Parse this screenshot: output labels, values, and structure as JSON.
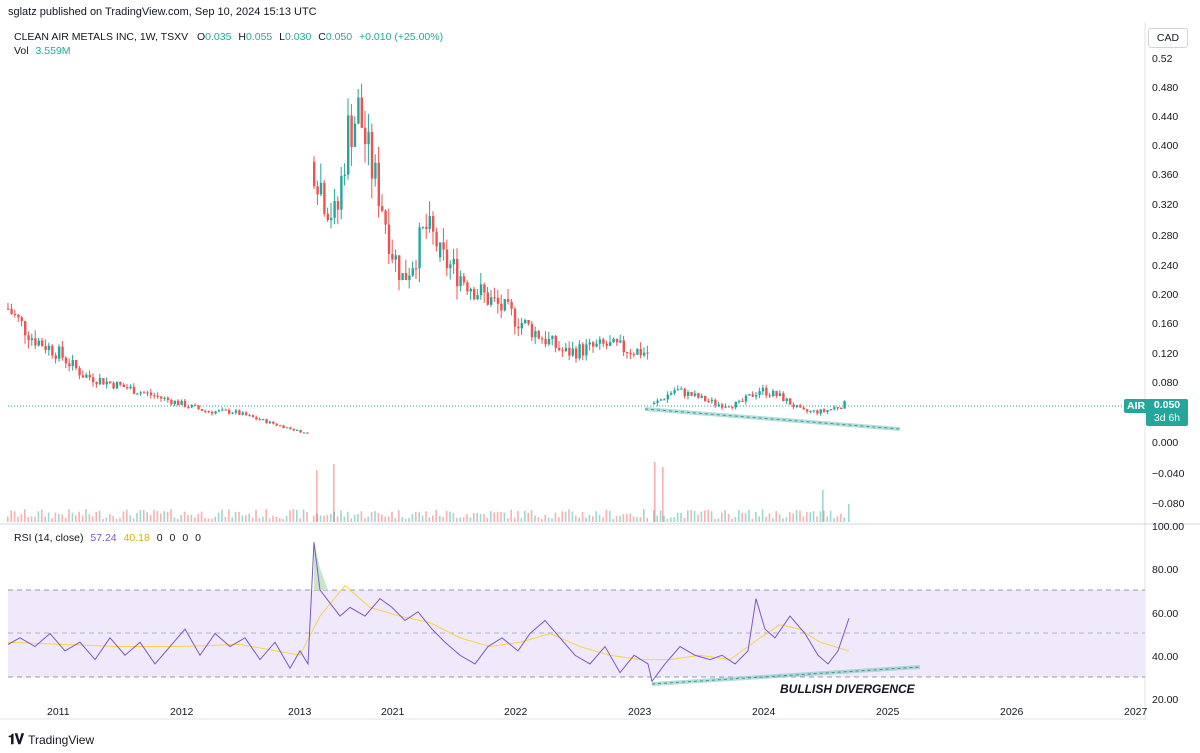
{
  "publisher": "sglatz published on TradingView.com, Sep 10, 2024 15:13 UTC",
  "legend": {
    "symbol": "CLEAN AIR METALS INC, 1W, TSXV",
    "o_label": "O",
    "o": "0.035",
    "h_label": "H",
    "h": "0.055",
    "l_label": "L",
    "l": "0.030",
    "c_label": "C",
    "c": "0.050",
    "change": "+0.010 (+25.00%)",
    "vol_label": "Vol",
    "vol": "3.559M"
  },
  "currency_button": "CAD",
  "price_axis": {
    "ticks": [
      "0.52",
      "0.480",
      "0.440",
      "0.400",
      "0.360",
      "0.320",
      "0.280",
      "0.240",
      "0.200",
      "0.160",
      "0.120",
      "0.080",
      "0.000",
      "−0.040",
      "−0.080"
    ]
  },
  "last_price": {
    "ticker": "AIR",
    "price": "0.050",
    "countdown": "3d 6h"
  },
  "rsi": {
    "label": "RSI (14, close)",
    "value": "57.24",
    "ma": "40.18",
    "extras": [
      "0",
      "0",
      "0",
      "0"
    ],
    "ticks": [
      "100.00",
      "80.00",
      "60.00",
      "40.00",
      "20.00"
    ],
    "upper_band": 70,
    "lower_band": 30,
    "mid": 50
  },
  "time_axis": [
    "2011",
    "2012",
    "2013",
    "2021",
    "2022",
    "2023",
    "2024",
    "2025",
    "2026",
    "2027"
  ],
  "annotation": "BULLISH DIVERGENCE",
  "footer": {
    "brand": "TradingView"
  },
  "colors": {
    "up": "#26a69a",
    "down": "#ef5350",
    "rsi_line": "#7e57c2",
    "rsi_ma": "#f7d34a",
    "band_fill": "#efe9fb"
  },
  "chart_data": [
    {
      "type": "candlestick",
      "ylim": [
        -0.1,
        0.52
      ],
      "ylabel": "CAD",
      "eras": [
        {
          "period": "2010-2013",
          "trend": "decline",
          "approx_close_points": [
            0.18,
            0.14,
            0.12,
            0.09,
            0.08,
            0.07,
            0.06,
            0.05,
            0.04,
            0.04,
            0.03,
            0.02,
            0.01
          ]
        },
        {
          "period": "2020-2022",
          "trend": "spike then decline",
          "approx_close_points": [
            0.38,
            0.33,
            0.3,
            0.42,
            0.45,
            0.38,
            0.33,
            0.26,
            0.22,
            0.25,
            0.29,
            0.27
          ]
        },
        {
          "period": "2022-2023",
          "trend": "decline",
          "approx_close_points": [
            0.25,
            0.2,
            0.16,
            0.12,
            0.13,
            0.12
          ]
        },
        {
          "period": "2023-2024",
          "trend": "base",
          "approx_close_points": [
            0.05,
            0.07,
            0.06,
            0.05,
            0.05,
            0.07,
            0.06,
            0.04,
            0.04,
            0.05
          ]
        }
      ],
      "trendline": {
        "from_price": 0.045,
        "to_price": 0.02,
        "from_time": "2023",
        "to_time": "2025"
      },
      "last_close": 0.05
    },
    {
      "type": "line",
      "title": "RSI (14, close)",
      "ylim": [
        20,
        100
      ],
      "series": [
        {
          "name": "RSI",
          "last": 57.24
        },
        {
          "name": "RSI-based MA",
          "last": 40.18
        }
      ]
    }
  ]
}
